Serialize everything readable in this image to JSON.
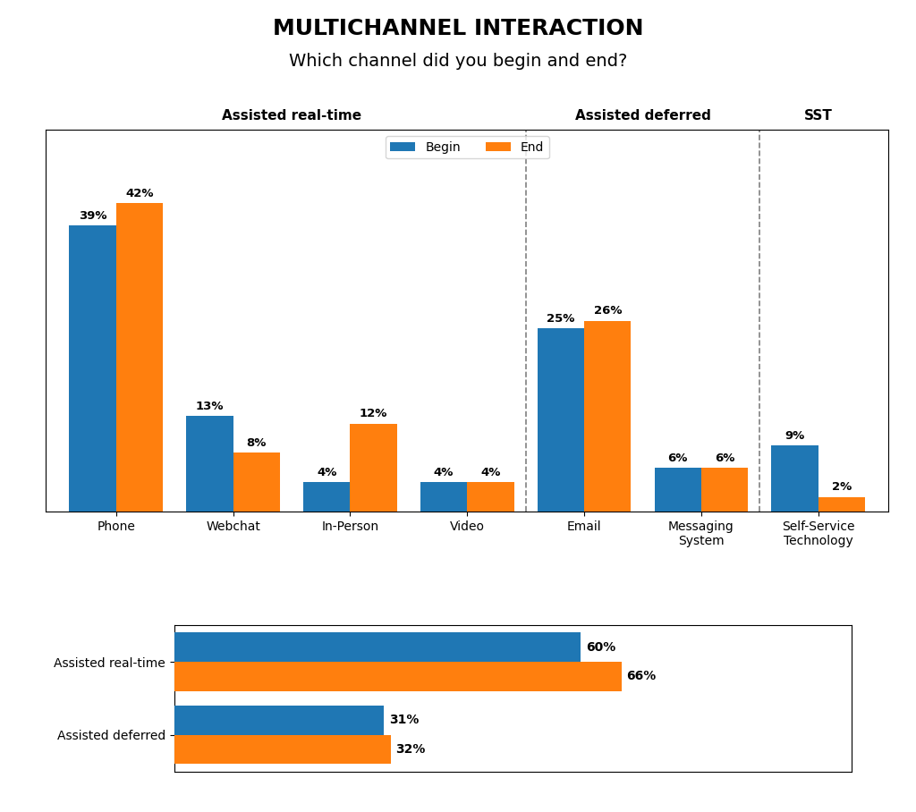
{
  "chart_data": [
    {
      "type": "bar",
      "title": "MULTICHANNEL INTERACTION",
      "subtitle": "Which channel did you begin and end?",
      "categories": [
        "Phone",
        "Webchat",
        "In-Person",
        "Video",
        "Email",
        "Messaging\nSystem",
        "Self-Service\nTechnology"
      ],
      "series": [
        {
          "name": "Begin",
          "values": [
            39,
            13,
            4,
            4,
            25,
            6,
            9
          ],
          "value_labels": [
            "39%",
            "13%",
            "4%",
            "4%",
            "25%",
            "6%",
            "9%"
          ]
        },
        {
          "name": "End",
          "values": [
            42,
            8,
            12,
            4,
            26,
            6,
            2
          ],
          "value_labels": [
            "42%",
            "8%",
            "12%",
            "4%",
            "26%",
            "6%",
            "2%"
          ]
        }
      ],
      "ylim": [
        0,
        52
      ],
      "tick_labels": "x",
      "data_labels": true,
      "legend": "upper center",
      "vlines": [
        3.5,
        5.5
      ],
      "annotations": [
        {
          "text": "Assisted real-time",
          "x": 1.5
        },
        {
          "text": "Assisted deferred",
          "x": 4.5
        },
        {
          "text": "SST",
          "x": 6.0
        }
      ]
    },
    {
      "type": "bar",
      "orientation": "horizontal",
      "categories": [
        "Assisted real-time",
        "Assisted deferred"
      ],
      "series": [
        {
          "values": [
            60,
            31
          ],
          "value_labels": [
            "60%",
            "31%"
          ]
        },
        {
          "values": [
            66,
            32
          ],
          "value_labels": [
            "66%",
            "32%"
          ]
        }
      ],
      "xlim": [
        0,
        100
      ],
      "tick_labels": "y",
      "data_labels": true
    }
  ]
}
